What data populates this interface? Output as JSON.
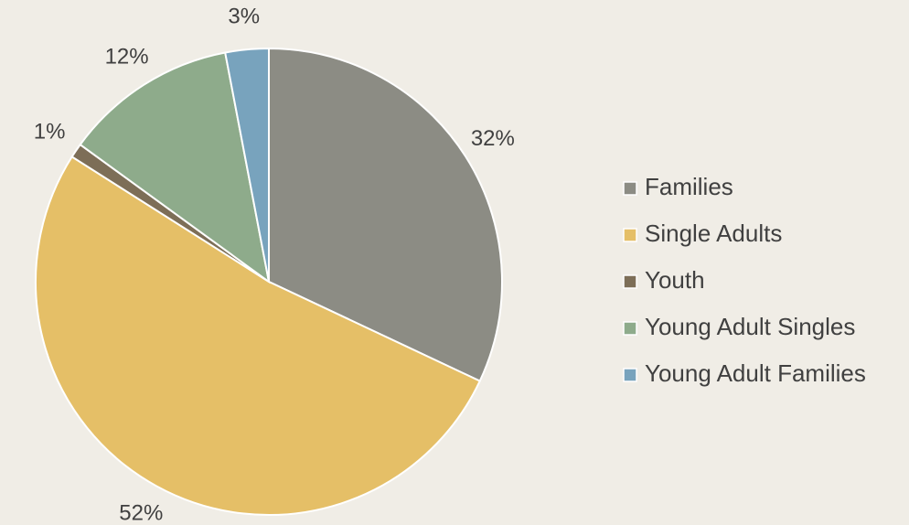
{
  "chart_data": {
    "type": "pie",
    "categories": [
      "Families",
      "Single Adults",
      "Youth",
      "Young Adult Singles",
      "Young Adult Families"
    ],
    "values": [
      32,
      52,
      1,
      12,
      3
    ],
    "value_labels": [
      "32%",
      "52%",
      "1%",
      "12%",
      "3%"
    ],
    "colors": [
      "#8c8c84",
      "#e5bf67",
      "#7d6e57",
      "#8eab8b",
      "#78a3bd"
    ],
    "legend": "right"
  }
}
